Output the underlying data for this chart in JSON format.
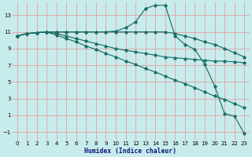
{
  "xlabel": "Humidex (Indice chaleur)",
  "bg_color": "#c8ecec",
  "grid_color": "#e0a0a0",
  "line_color": "#1a6e68",
  "xlim": [
    -0.5,
    23.5
  ],
  "ylim": [
    -2.0,
    14.5
  ],
  "xticks": [
    0,
    1,
    2,
    3,
    4,
    5,
    6,
    7,
    8,
    9,
    10,
    11,
    12,
    13,
    14,
    15,
    16,
    17,
    18,
    19,
    20,
    21,
    22,
    23
  ],
  "yticks": [
    -1,
    1,
    3,
    5,
    7,
    9,
    11,
    13
  ],
  "lines": [
    {
      "x": [
        0,
        1,
        2,
        3,
        4,
        5,
        6,
        7,
        8,
        9,
        10,
        11,
        12,
        13,
        14,
        15,
        16,
        17,
        18,
        19,
        20,
        21,
        22,
        23
      ],
      "y": [
        10.5,
        10.8,
        10.9,
        11.0,
        11.0,
        11.0,
        11.0,
        11.0,
        11.0,
        11.0,
        11.1,
        11.5,
        12.2,
        13.8,
        14.2,
        14.2,
        10.5,
        9.5,
        8.9,
        7.1,
        4.5,
        1.2,
        0.9,
        -1.2
      ]
    },
    {
      "x": [
        0,
        1,
        2,
        3,
        4,
        5,
        6,
        7,
        8,
        9,
        10,
        11,
        12,
        13,
        14,
        15,
        16,
        17,
        18,
        19,
        20,
        21,
        22,
        23
      ],
      "y": [
        10.5,
        10.8,
        10.9,
        11.0,
        11.0,
        11.0,
        11.0,
        11.0,
        11.0,
        11.0,
        11.0,
        11.0,
        11.0,
        11.0,
        11.0,
        11.0,
        10.8,
        10.5,
        10.2,
        9.8,
        9.5,
        9.0,
        8.5,
        8.0
      ]
    },
    {
      "x": [
        0,
        1,
        2,
        3,
        4,
        5,
        6,
        7,
        8,
        9,
        10,
        11,
        12,
        13,
        14,
        15,
        16,
        17,
        18,
        19,
        20,
        21,
        22,
        23
      ],
      "y": [
        10.5,
        10.8,
        10.9,
        11.0,
        10.8,
        10.5,
        10.2,
        9.9,
        9.6,
        9.3,
        9.0,
        8.8,
        8.6,
        8.4,
        8.2,
        8.0,
        7.9,
        7.8,
        7.7,
        7.6,
        7.5,
        7.5,
        7.4,
        7.3
      ]
    },
    {
      "x": [
        0,
        1,
        2,
        3,
        4,
        5,
        6,
        7,
        8,
        9,
        10,
        11,
        12,
        13,
        14,
        15,
        16,
        17,
        18,
        19,
        20,
        21,
        22,
        23
      ],
      "y": [
        10.5,
        10.8,
        10.9,
        11.0,
        10.6,
        10.2,
        9.8,
        9.3,
        8.9,
        8.4,
        8.0,
        7.5,
        7.1,
        6.6,
        6.2,
        5.7,
        5.2,
        4.8,
        4.3,
        3.8,
        3.3,
        2.9,
        2.4,
        1.9
      ]
    }
  ]
}
